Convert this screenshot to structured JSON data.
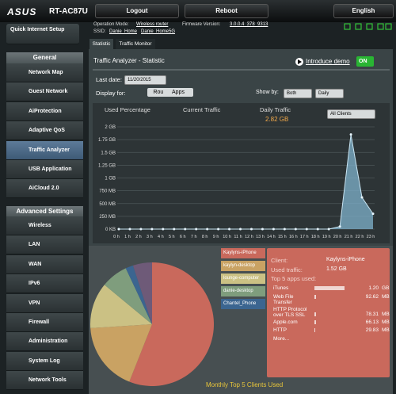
{
  "header": {
    "logo": "ASUS",
    "model": "RT-AC87U",
    "buttons": [
      "Logout",
      "Reboot"
    ],
    "language": "English"
  },
  "info": {
    "mode_label": "Operation Mode:",
    "mode": "Wireless router",
    "firmware_label": "Firmware Version:",
    "firmware": "3.0.0.4_378_9313",
    "ssid_label": "SSID:",
    "ssids": [
      "Danie_Home",
      "Danie_Home5G"
    ]
  },
  "sidebar": {
    "quick_setup": "Quick Internet Setup",
    "general_title": "General",
    "general": [
      "Network Map",
      "Guest Network",
      "AiProtection",
      "Adaptive QoS",
      "Traffic Analyzer",
      "USB Application",
      "AiCloud 2.0"
    ],
    "advanced_title": "Advanced Settings",
    "advanced": [
      "Wireless",
      "LAN",
      "WAN",
      "IPv6",
      "VPN",
      "Firewall",
      "Administration",
      "System Log",
      "Network Tools"
    ]
  },
  "tabs": [
    "Statistic",
    "Traffic Monitor"
  ],
  "panel": {
    "title": "Traffic Analyzer - Statistic",
    "intro": "Introduce demo",
    "toggle": "ON",
    "last_date_label": "Last date:",
    "last_date": "11/20/2015",
    "display_label": "Display for:",
    "display_options": [
      "Router",
      "Apps"
    ],
    "show_by_label": "Show by:",
    "show_by": [
      "Both",
      "Daily"
    ],
    "headers": [
      "Used Percentage",
      "Current Traffic",
      "Daily Traffic"
    ],
    "daily_total": "2.82 GB",
    "client_select": "All Clients"
  },
  "chart_data": [
    {
      "type": "area",
      "color": "#7fb2cc",
      "categories": [
        "0 h",
        "1 h",
        "2 h",
        "3 h",
        "4 h",
        "5 h",
        "6 h",
        "7 h",
        "8 h",
        "9 h",
        "10 h",
        "11 h",
        "12 h",
        "13 h",
        "14 h",
        "15 h",
        "16 h",
        "17 h",
        "18 h",
        "19 h",
        "20 h",
        "21 h",
        "22 h",
        "23 h"
      ],
      "values": [
        0,
        0,
        0,
        0,
        0,
        0,
        0,
        0,
        0,
        0,
        0,
        0,
        0,
        0,
        0,
        0,
        0,
        0,
        0,
        0,
        0.05,
        1.85,
        0.62,
        0.3
      ],
      "ylim": [
        0,
        2
      ],
      "yticks": [
        {
          "value": 0,
          "label": "0 KB"
        },
        {
          "value": 0.25,
          "label": "250 MB"
        },
        {
          "value": 0.5,
          "label": "500 MB"
        },
        {
          "value": 0.75,
          "label": "750 MB"
        },
        {
          "value": 1,
          "label": "1 GB"
        },
        {
          "value": 1.25,
          "label": "1.25 GB"
        },
        {
          "value": 1.5,
          "label": "1.5 GB"
        },
        {
          "value": 1.75,
          "label": "1.75 GB"
        },
        {
          "value": 2,
          "label": "2 GB"
        }
      ],
      "grid": true
    },
    {
      "type": "pie",
      "title": "Monthly Top 5 Clients Used",
      "categories": [
        "Kaylyns-iPhone",
        "kaylyn-desktop",
        "lounge-computer",
        "danie-desktop",
        "Chantel_Phone",
        null
      ],
      "values": [
        56,
        18,
        12,
        7,
        2,
        5
      ],
      "colors": [
        "#c9695c",
        "#c9a263",
        "#cbc184",
        "#7f9d7d",
        "#3b6590",
        "#6e5a78"
      ]
    }
  ],
  "client_detail": {
    "client_label": "Client:",
    "client": "Kaylyns-iPhone",
    "traffic_label": "Used traffic:",
    "traffic": "1.52 GB",
    "apps_title": "Top 5 apps used:",
    "apps": [
      {
        "name": "iTunes",
        "amount": "1.20",
        "unit": "GB"
      },
      {
        "name": "Web File Transfer",
        "amount": "92.62",
        "unit": "MB"
      },
      {
        "name": "HTTP Protocol over TLS SSL",
        "amount": "78.31",
        "unit": "MB"
      },
      {
        "name": "Apple.com",
        "amount": "66.13",
        "unit": "MB"
      },
      {
        "name": "HTTP",
        "amount": "29.83",
        "unit": "MB"
      }
    ],
    "more": "More..."
  }
}
